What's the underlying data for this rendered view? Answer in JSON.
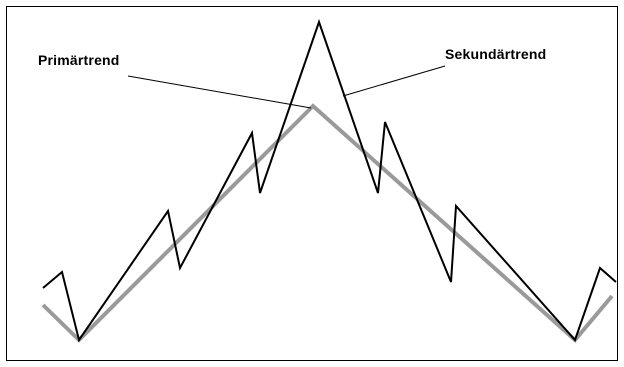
{
  "labels": {
    "primary_trend": "Primärtrend",
    "secondary_trend": "Sekundärtrend"
  },
  "colors": {
    "primary_line": "#9a9a9a",
    "secondary_line": "#000000",
    "pointer_line": "#000000",
    "frame": "#000000",
    "background": "#ffffff"
  }
}
